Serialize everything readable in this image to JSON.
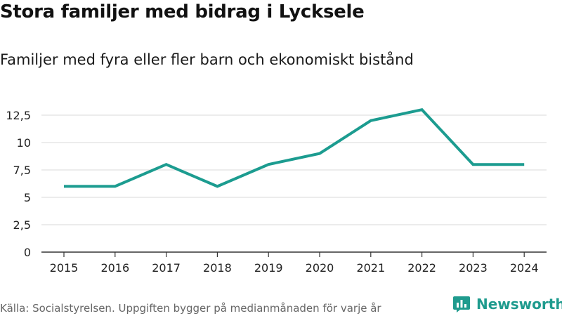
{
  "header": {
    "title": "Stora familjer med bidrag i Lycksele",
    "subtitle": "Familjer med fyra eller fler barn och ekonomiskt bistånd"
  },
  "footer": {
    "source": "Källa: Socialstyrelsen. Uppgiften bygger på medianmånaden för varje år",
    "brand_name": "Newsworthy",
    "brand_icon": "bar-chart-icon"
  },
  "colors": {
    "line": "#1c9c90",
    "grid": "#d9d9d9",
    "axis": "#333333",
    "brand": "#1f9b8e"
  },
  "chart_data": {
    "type": "line",
    "title": "Stora familjer med bidrag i Lycksele",
    "subtitle": "Familjer med fyra eller fler barn och ekonomiskt bistånd",
    "xlabel": "",
    "ylabel": "",
    "categories": [
      "2015",
      "2016",
      "2017",
      "2018",
      "2019",
      "2020",
      "2021",
      "2022",
      "2023",
      "2024"
    ],
    "series": [
      {
        "name": "Familjer",
        "values": [
          6,
          6,
          8,
          6,
          8,
          9,
          12,
          13,
          8,
          8
        ]
      }
    ],
    "ylim": [
      0,
      12.5
    ],
    "yticks": [
      0,
      2.5,
      5,
      7.5,
      10,
      12.5
    ],
    "ytick_labels": [
      "0",
      "2,5",
      "5",
      "7,5",
      "10",
      "12,5"
    ],
    "grid": true,
    "legend": "none"
  }
}
